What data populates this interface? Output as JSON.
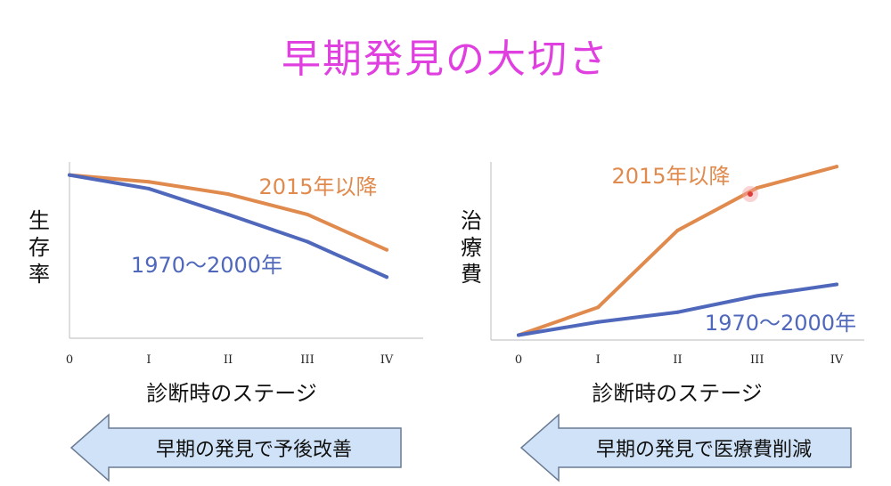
{
  "title": "早期発見の大切さ",
  "colors": {
    "title": "#e040e0",
    "orange": "#e08a4e",
    "blue": "#4f68bb",
    "axis": "#c8c8c8",
    "arrow_fill": "#cfe2f7",
    "arrow_stroke": "#6a7b93"
  },
  "arrows": [
    {
      "label": "早期の発見で予後改善"
    },
    {
      "label": "早期の発見で医療費削減"
    }
  ],
  "chart_data": [
    {
      "type": "line",
      "ylabel": "生存率",
      "xlabel": "診断時のステージ",
      "categories": [
        "0",
        "I",
        "II",
        "III",
        "IV"
      ],
      "series": [
        {
          "name": "2015年以降",
          "values": [
            100,
            95,
            86,
            71,
            45
          ]
        },
        {
          "name": "1970〜2000年",
          "values": [
            100,
            90,
            71,
            51,
            25
          ]
        }
      ],
      "ylim": [
        -20,
        105
      ]
    },
    {
      "type": "line",
      "ylabel": "治療費",
      "xlabel": "診断時のステージ",
      "categories": [
        "0",
        "I",
        "II",
        "III",
        "IV"
      ],
      "series": [
        {
          "name": "2015年以降",
          "values": [
            3,
            20,
            67,
            93,
            106
          ]
        },
        {
          "name": "1970〜2000年",
          "values": [
            3,
            11,
            17,
            27,
            34
          ]
        }
      ],
      "ylim": [
        0,
        105
      ]
    }
  ]
}
